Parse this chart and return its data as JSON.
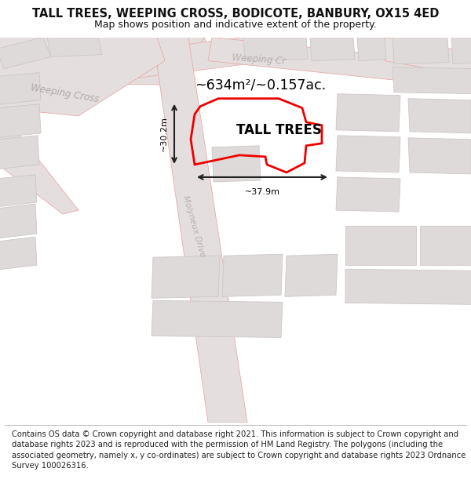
{
  "title": "TALL TREES, WEEPING CROSS, BODICOTE, BANBURY, OX15 4ED",
  "subtitle": "Map shows position and indicative extent of the property.",
  "footer": "Contains OS data © Crown copyright and database right 2021. This information is subject to Crown copyright and database rights 2023 and is reproduced with the permission of HM Land Registry. The polygons (including the associated geometry, namely x, y co-ordinates) are subject to Crown copyright and database rights 2023 Ordnance Survey 100026316.",
  "area_label": "~634m²/~0.157ac.",
  "property_label": "TALL TREES",
  "width_label": "~37.9m",
  "height_label": "~30.2m",
  "road_label_weeping_left": "Weeping Cross",
  "road_label_weeping_center": "Weeping Cr",
  "road_label_molyneux": "Molyneux Drive",
  "bg_color": "#ede9e8",
  "map_bg": "#ede9e8",
  "road_fill": "#e4dfde",
  "road_stroke": "#e8aaaa",
  "building_fill": "#dedad9",
  "building_stroke": "#ccc8c7",
  "property_stroke": "#ee0000",
  "dim_color": "#222222",
  "white": "#ffffff",
  "title_fontsize": 10.5,
  "subtitle_fontsize": 9,
  "footer_fontsize": 7.2,
  "label_color": "#aaaaaa",
  "title_color": "#111111"
}
